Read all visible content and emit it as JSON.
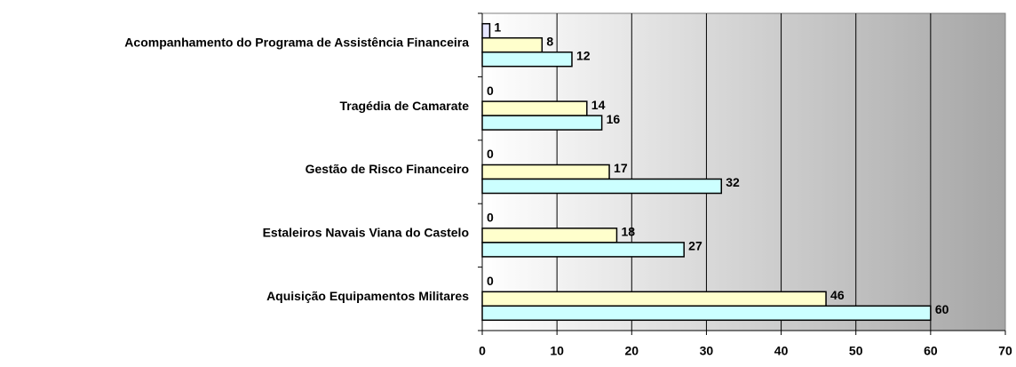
{
  "chart_data": {
    "type": "bar",
    "orientation": "horizontal",
    "categories": [
      "Acompanhamento do Programa de Assistência Financeira",
      "Tragédia de Camarate",
      "Gestão de Risco Financeiro",
      "Estaleiros Navais Viana do Castelo",
      "Aquisição Equipamentos Militares"
    ],
    "series": [
      {
        "color": "#e6e6ff",
        "values": [
          1,
          0,
          0,
          0,
          0
        ]
      },
      {
        "color": "#ffffcc",
        "values": [
          8,
          14,
          17,
          18,
          46
        ]
      },
      {
        "color": "#ccffff",
        "values": [
          12,
          16,
          32,
          27,
          60
        ]
      }
    ],
    "xlim": [
      0,
      70
    ],
    "xticks": [
      0,
      10,
      20,
      30,
      40,
      50,
      60,
      70
    ],
    "grid": true
  }
}
